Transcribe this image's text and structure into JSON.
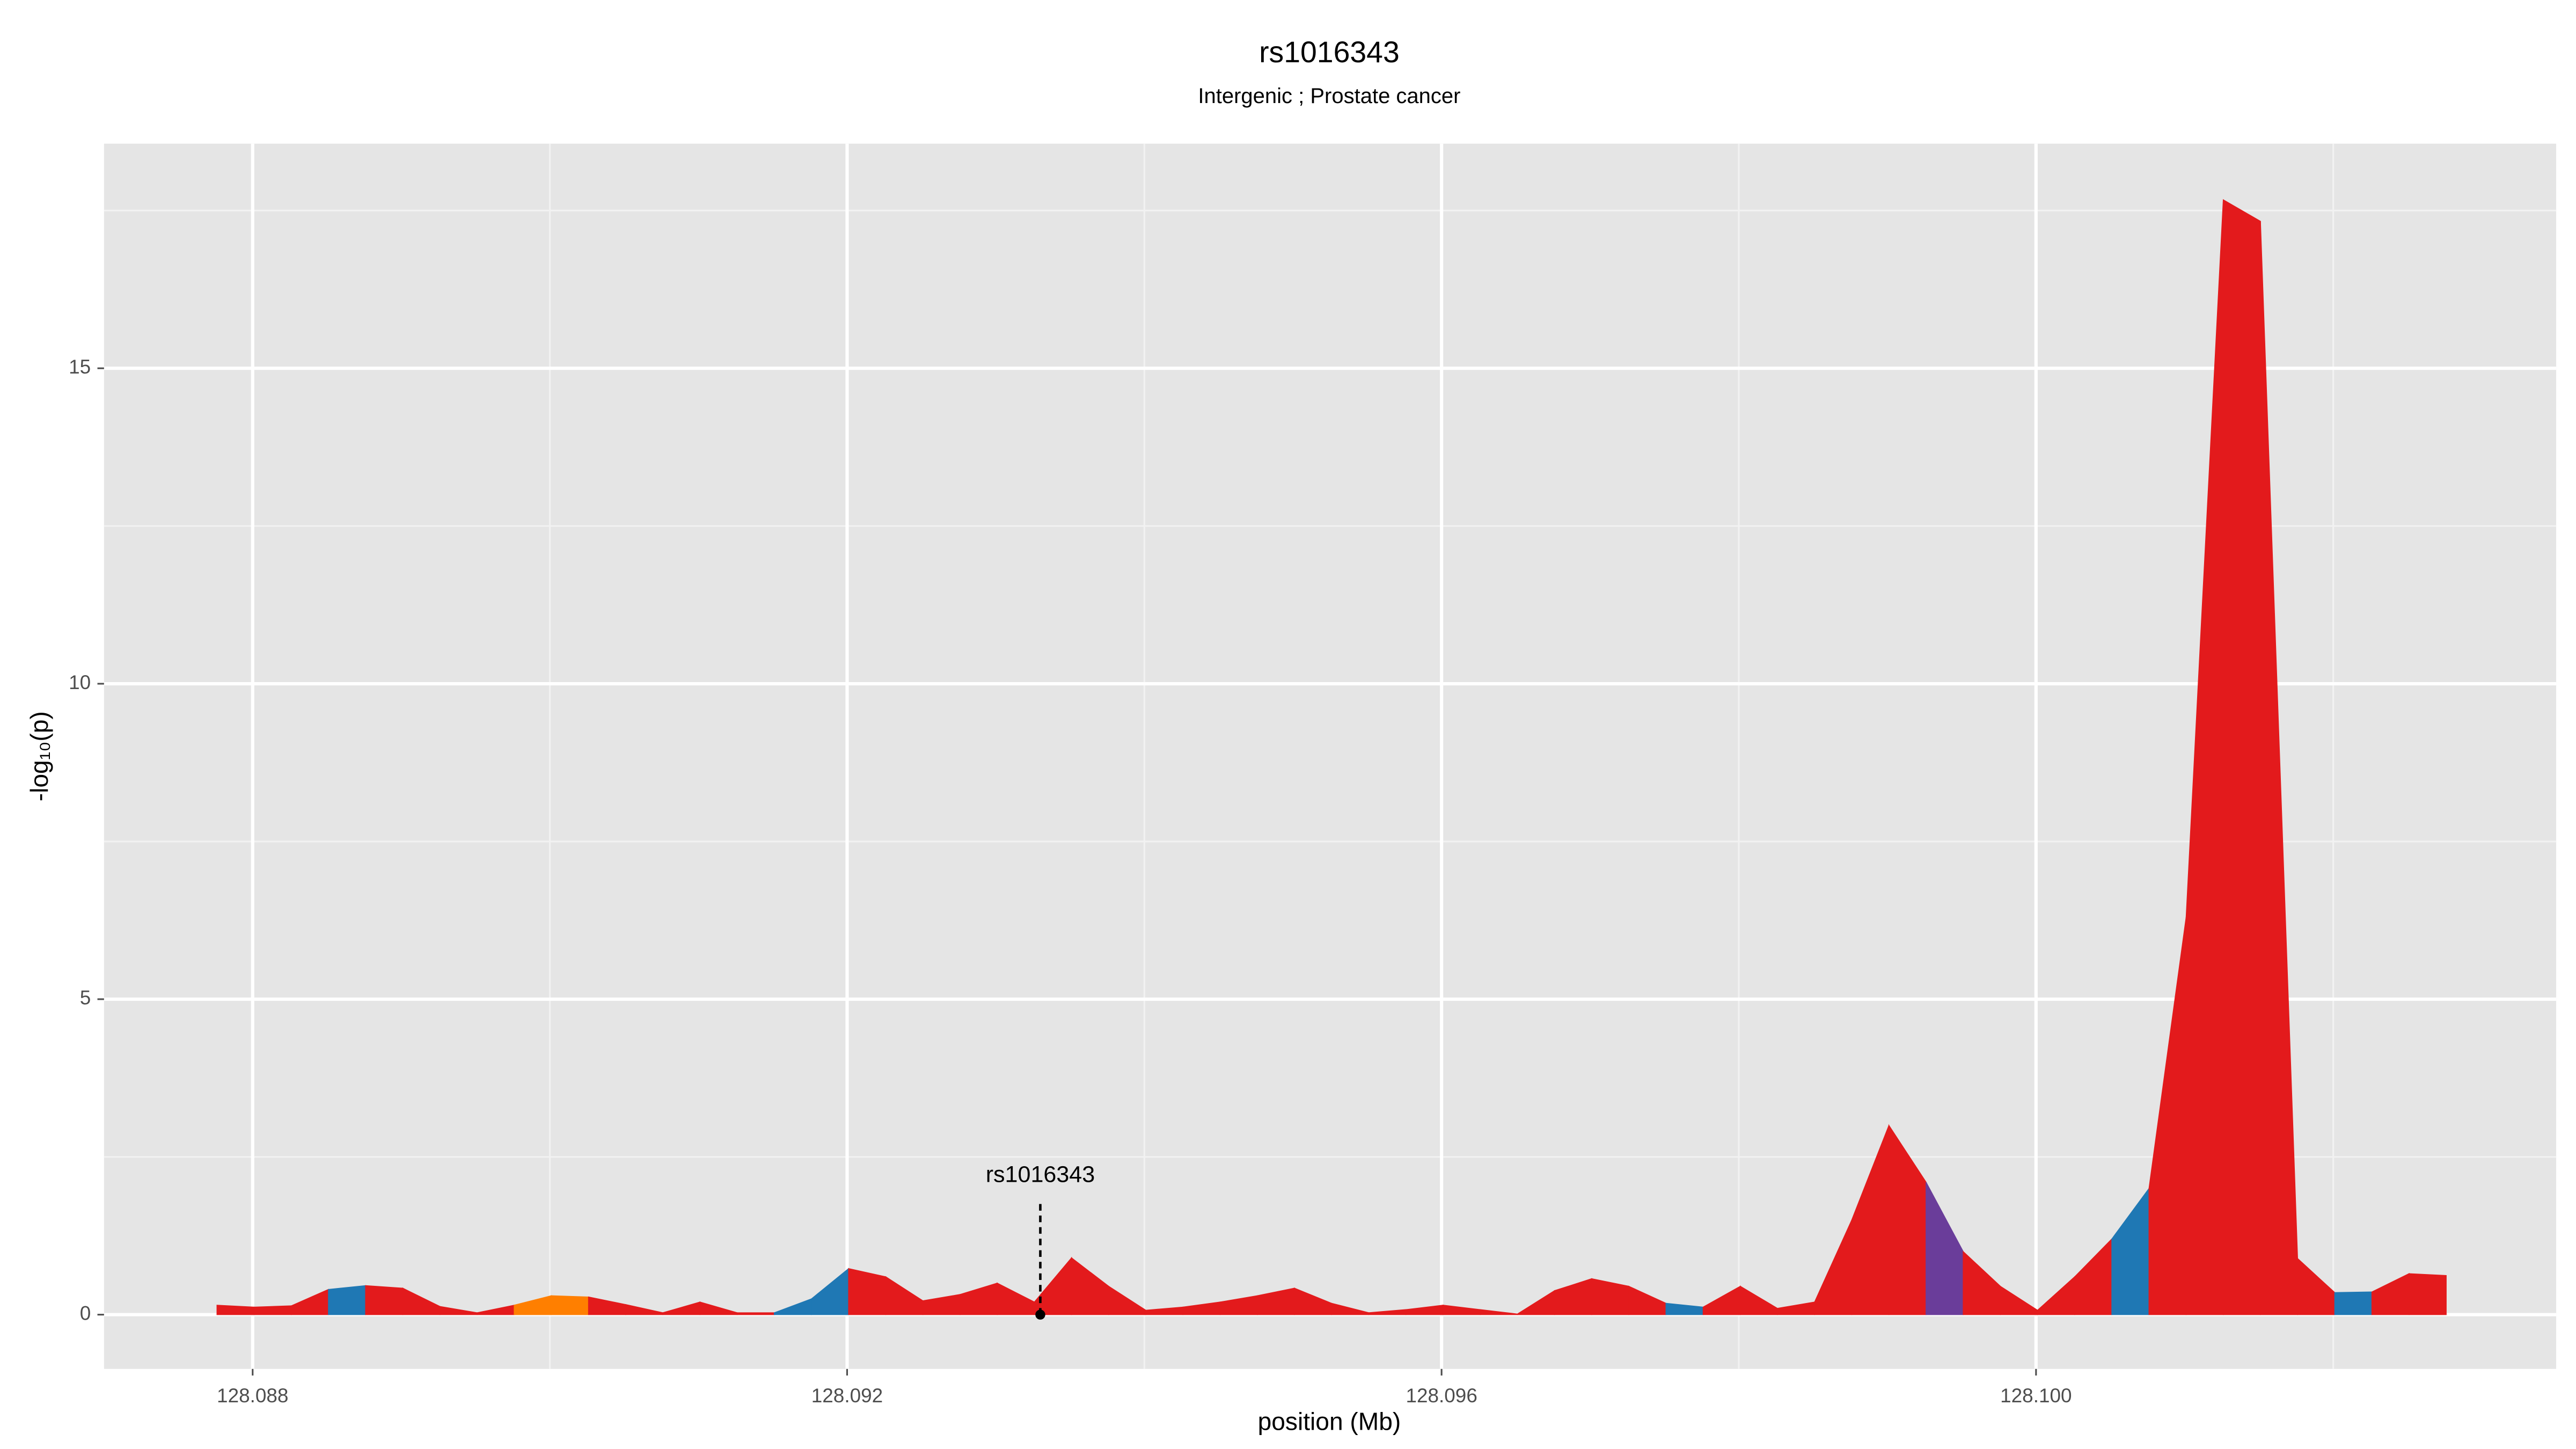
{
  "chart_data": {
    "type": "area",
    "title": "rs1016343",
    "subtitle": "Intergenic ; Prostate cancer",
    "x_label": "position (Mb)",
    "y_label": "-log₁₀(p)",
    "xlim": [
      128.087,
      128.1035
    ],
    "ylim": [
      -0.86,
      18.56
    ],
    "xticks": [
      128.088,
      128.092,
      128.096,
      {
        "value": 128.1,
        "label": "128.100"
      }
    ],
    "yticks": [
      0,
      5,
      10,
      15
    ],
    "grid": true,
    "x": [
      128.08776,
      128.08801,
      128.08826,
      128.08851,
      128.08876,
      128.08901,
      128.08926,
      128.08951,
      128.08976,
      128.09001,
      128.09026,
      128.09051,
      128.09076,
      128.09101,
      128.09126,
      128.09151,
      128.09176,
      128.09201,
      128.09226,
      128.09251,
      128.09276,
      128.09301,
      128.09326,
      128.09351,
      128.09376,
      128.09401,
      128.09426,
      128.09451,
      128.09476,
      128.09501,
      128.09526,
      128.09551,
      128.09576,
      128.09601,
      128.09626,
      128.09651,
      128.09676,
      128.09701,
      128.09726,
      128.09751,
      128.09776,
      128.09801,
      128.09826,
      128.09851,
      128.09876,
      128.09901,
      128.09926,
      128.09951,
      128.09976,
      128.10001,
      128.10026,
      128.10051,
      128.10076,
      128.10101,
      128.10126,
      128.10151,
      128.10176,
      128.10201,
      128.10226,
      128.10251,
      128.10276
    ],
    "values": [
      0.15,
      0.12,
      0.14,
      0.4,
      0.46,
      0.42,
      0.13,
      0.03,
      0.15,
      0.3,
      0.28,
      0.16,
      0.03,
      0.2,
      0.03,
      0.03,
      0.25,
      0.73,
      0.6,
      0.22,
      0.32,
      0.5,
      0.2,
      0.9,
      0.45,
      0.07,
      0.12,
      0.2,
      0.3,
      0.42,
      0.18,
      0.03,
      0.08,
      0.15,
      0.08,
      0.01,
      0.38,
      0.57,
      0.45,
      0.18,
      0.12,
      0.45,
      0.1,
      0.2,
      1.5,
      3.0,
      2.1,
      1.0,
      0.45,
      0.07,
      0.6,
      1.2,
      2.0,
      6.3,
      17.67,
      17.33,
      0.89,
      0.35,
      0.36,
      0.65,
      0.62
    ],
    "segment_colors": [
      "#e31a1c",
      "#e31a1c",
      "#e31a1c",
      "#1f78b4",
      "#e31a1c",
      "#e31a1c",
      "#e31a1c",
      "#e31a1c",
      "#ff7f00",
      "#ff7f00",
      "#e31a1c",
      "#e31a1c",
      "#e31a1c",
      "#e31a1c",
      "#e31a1c",
      "#1f78b4",
      "#1f78b4",
      "#e31a1c",
      "#e31a1c",
      "#e31a1c",
      "#e31a1c",
      "#e31a1c",
      "#e31a1c",
      "#e31a1c",
      "#e31a1c",
      "#e31a1c",
      "#e31a1c",
      "#e31a1c",
      "#e31a1c",
      "#e31a1c",
      "#e31a1c",
      "#e31a1c",
      "#e31a1c",
      "#e31a1c",
      "#e31a1c",
      "#e31a1c",
      "#e31a1c",
      "#e31a1c",
      "#e31a1c",
      "#1f78b4",
      "#e31a1c",
      "#e31a1c",
      "#e31a1c",
      "#e31a1c",
      "#e31a1c",
      "#e31a1c",
      "#6a3d9a",
      "#e31a1c",
      "#e31a1c",
      "#e31a1c",
      "#e31a1c",
      "#1f78b4",
      "#e31a1c",
      "#e31a1c",
      "#e31a1c",
      "#e31a1c",
      "#e31a1c",
      "#1f78b4",
      "#e31a1c",
      "#e31a1c"
    ],
    "annotation": {
      "label": "rs1016343",
      "x": 128.0933,
      "y": 0
    }
  }
}
